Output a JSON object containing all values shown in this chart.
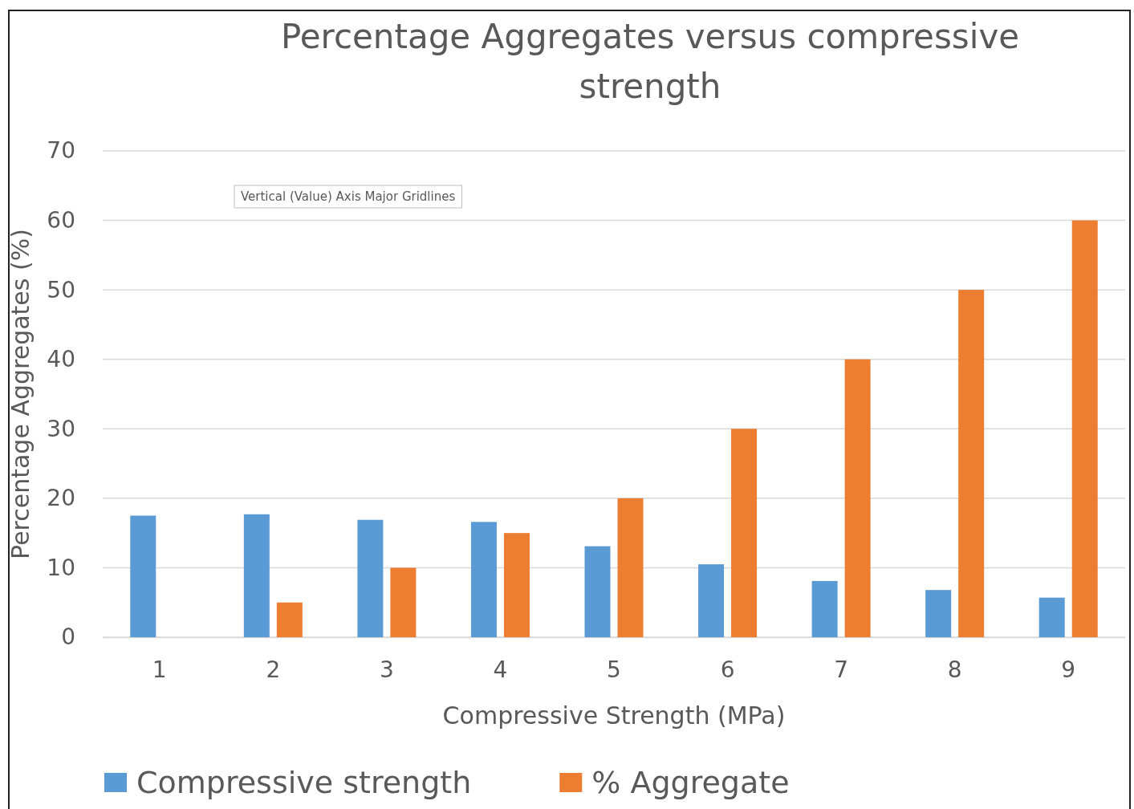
{
  "chart_data": {
    "type": "bar",
    "title": "Percentage Aggregates versus compressive strength",
    "xlabel": "Compressive Strength (MPa)",
    "ylabel": "Percentage Aggregates (%)",
    "categories": [
      "1",
      "2",
      "3",
      "4",
      "5",
      "6",
      "7",
      "8",
      "9"
    ],
    "series": [
      {
        "name": "Compressive strength",
        "color": "#5b9bd5",
        "values": [
          17.5,
          17.7,
          16.9,
          16.6,
          13.1,
          10.5,
          8.1,
          6.8,
          5.7
        ]
      },
      {
        "name": "% Aggregate",
        "color": "#ed7d31",
        "values": [
          0,
          5,
          10,
          15,
          20,
          30,
          40,
          50,
          60
        ]
      }
    ],
    "ylim": [
      0,
      70
    ],
    "yticks": [
      0,
      10,
      20,
      30,
      40,
      50,
      60,
      70
    ],
    "grid": "y",
    "legend": "bottom",
    "annotations": [
      "Vertical (Value) Axis Major Gridlines"
    ]
  }
}
